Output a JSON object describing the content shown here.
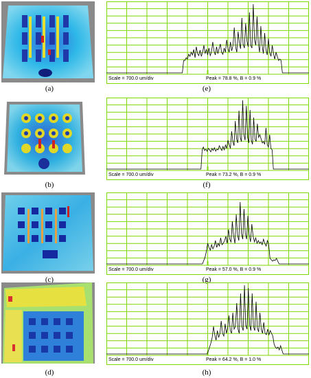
{
  "panels": [
    {
      "label_left": "(a)",
      "label_right": "(e)",
      "scale": "Scale = 700.0 um/div",
      "peak": "Peak = 78.8 %, B = 0.9 %",
      "profile": [
        0,
        0,
        0,
        0,
        0,
        0,
        0,
        0,
        0,
        0,
        0,
        0,
        0,
        0,
        0,
        0,
        0,
        0,
        0,
        0,
        0,
        0,
        0,
        0,
        0,
        0,
        0,
        0,
        0,
        0,
        0,
        0,
        0,
        0,
        0,
        0,
        0,
        0,
        0,
        0,
        0,
        0,
        0,
        0,
        0,
        0,
        0,
        0,
        0,
        0,
        0,
        0,
        0,
        0,
        0,
        0,
        0,
        0,
        0,
        0,
        0,
        18,
        18,
        22,
        20,
        27,
        24,
        30,
        26,
        34,
        22,
        38,
        28,
        25,
        33,
        24,
        30,
        40,
        28,
        34,
        26,
        36,
        25,
        30,
        45,
        32,
        26,
        38,
        28,
        35,
        42,
        30,
        27,
        36,
        30,
        48,
        36,
        30,
        45,
        32,
        40,
        66,
        38,
        30,
        60,
        44,
        35,
        80,
        42,
        36,
        72,
        46,
        38,
        88,
        40,
        36,
        100,
        48,
        40,
        82,
        42,
        30,
        68,
        40,
        28,
        58,
        34,
        26,
        50,
        30,
        24,
        40,
        28,
        20,
        30,
        24,
        18,
        20,
        18,
        0,
        0,
        0,
        0,
        0,
        0,
        0,
        0,
        0,
        0,
        0,
        0,
        0,
        0,
        0,
        0,
        0,
        0,
        0,
        0,
        0,
        0
      ]
    },
    {
      "label_left": "(b)",
      "label_right": "(f)",
      "scale": "Scale = 700.0 um/div",
      "peak": "Peak = 73.2 %, B = 0.9 %",
      "profile": [
        0,
        0,
        0,
        0,
        0,
        0,
        0,
        0,
        0,
        0,
        0,
        0,
        0,
        0,
        0,
        0,
        0,
        0,
        0,
        0,
        0,
        0,
        0,
        0,
        0,
        0,
        0,
        0,
        0,
        0,
        0,
        0,
        0,
        0,
        0,
        0,
        0,
        0,
        0,
        0,
        0,
        0,
        0,
        0,
        0,
        0,
        0,
        0,
        0,
        0,
        0,
        0,
        0,
        0,
        0,
        0,
        0,
        0,
        0,
        0,
        0,
        0,
        0,
        0,
        0,
        0,
        0,
        0,
        0,
        0,
        0,
        0,
        0,
        0,
        0,
        0,
        0,
        0,
        28,
        32,
        27,
        29,
        26,
        30,
        28,
        25,
        30,
        27,
        31,
        26,
        29,
        28,
        34,
        30,
        27,
        33,
        28,
        35,
        30,
        42,
        36,
        30,
        55,
        40,
        34,
        70,
        44,
        38,
        85,
        46,
        40,
        100,
        50,
        42,
        92,
        46,
        38,
        86,
        42,
        36,
        75,
        44,
        40,
        66,
        46,
        50,
        44,
        38,
        40,
        36,
        60,
        36,
        32,
        50,
        30,
        28,
        0,
        0,
        0,
        0,
        0,
        0,
        0,
        0,
        0,
        0,
        0,
        0,
        0,
        0,
        0,
        0,
        0,
        0,
        0,
        0,
        0,
        0,
        0,
        0,
        0,
        0,
        0,
        0,
        0,
        0
      ]
    },
    {
      "label_left": "(c)",
      "label_right": "(g)",
      "scale": "Scale = 700.0 um/div",
      "peak": "Peak = 57.0 %, B = 0.9 %",
      "profile": [
        0,
        0,
        0,
        0,
        0,
        0,
        0,
        0,
        0,
        0,
        0,
        0,
        0,
        0,
        0,
        0,
        0,
        0,
        0,
        0,
        0,
        0,
        0,
        0,
        0,
        0,
        0,
        0,
        0,
        0,
        0,
        0,
        0,
        0,
        0,
        0,
        0,
        0,
        0,
        0,
        0,
        0,
        0,
        0,
        0,
        0,
        0,
        0,
        0,
        0,
        0,
        0,
        0,
        0,
        0,
        0,
        0,
        0,
        0,
        0,
        0,
        0,
        0,
        0,
        0,
        0,
        0,
        0,
        0,
        0,
        0,
        0,
        0,
        0,
        0,
        5,
        10,
        18,
        30,
        24,
        20,
        28,
        22,
        26,
        34,
        24,
        30,
        26,
        38,
        28,
        30,
        34,
        40,
        30,
        50,
        36,
        32,
        62,
        40,
        30,
        72,
        42,
        34,
        90,
        44,
        36,
        80,
        44,
        36,
        70,
        42,
        32,
        58,
        40,
        32,
        38,
        30,
        34,
        30,
        32,
        28,
        36,
        30,
        26,
        34,
        28,
        8,
        6,
        4,
        6,
        5,
        8,
        4,
        0,
        0,
        0,
        0,
        0,
        0,
        0,
        0,
        0,
        0,
        0,
        0,
        0,
        0,
        0,
        0,
        0,
        0,
        0,
        0,
        0,
        0,
        0,
        0
      ]
    },
    {
      "label_left": "(d)",
      "label_right": "(h)",
      "scale": "Scale = 700.0 um/div",
      "peak": "Peak = 64.2 %, B = 1.0 %",
      "profile": [
        0,
        0,
        0,
        0,
        0,
        0,
        0,
        0,
        0,
        0,
        0,
        0,
        0,
        0,
        0,
        0,
        0,
        0,
        0,
        0,
        0,
        0,
        0,
        0,
        0,
        0,
        0,
        0,
        0,
        0,
        0,
        0,
        0,
        0,
        0,
        0,
        0,
        0,
        0,
        0,
        0,
        0,
        0,
        0,
        0,
        0,
        0,
        0,
        0,
        0,
        0,
        0,
        0,
        0,
        0,
        0,
        0,
        0,
        0,
        0,
        0,
        0,
        0,
        0,
        0,
        0,
        0,
        0,
        0,
        0,
        0,
        0,
        0,
        0,
        0,
        0,
        0,
        0,
        0,
        4,
        10,
        16,
        24,
        40,
        28,
        20,
        34,
        24,
        30,
        48,
        30,
        26,
        44,
        30,
        38,
        56,
        34,
        30,
        60,
        36,
        40,
        74,
        36,
        30,
        88,
        40,
        34,
        100,
        42,
        36,
        96,
        42,
        34,
        88,
        40,
        34,
        76,
        38,
        32,
        60,
        36,
        30,
        46,
        30,
        28,
        36,
        28,
        34,
        30,
        26,
        14,
        10,
        8,
        10,
        6,
        12,
        6,
        0,
        0,
        0,
        0,
        0,
        0,
        0,
        0,
        0,
        0,
        0,
        0,
        0,
        0,
        0,
        0,
        0,
        0,
        0,
        0,
        0
      ]
    }
  ],
  "colors": {
    "grid": "#7fd600",
    "line": "#000000",
    "image_frame": "#8a8a8a"
  },
  "icons": [
    "surface-map-image"
  ]
}
